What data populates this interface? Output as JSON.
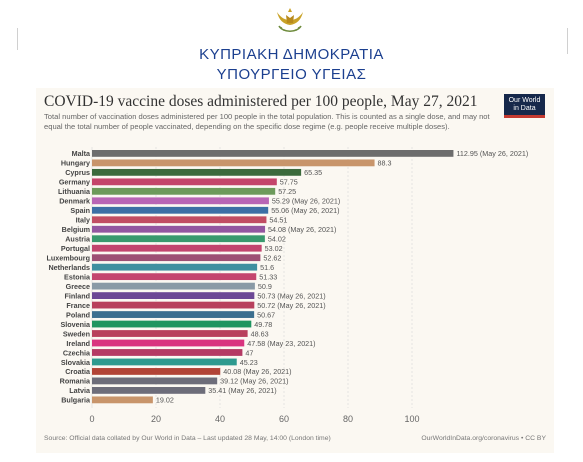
{
  "header": {
    "line1": "ΚΥΠΡΙΑΚΗ ΔΗΜΟΚΡΑΤΙΑ",
    "line2": "ΥΠΟΥΡΓΕΙΟ ΥΓΕΙΑΣ"
  },
  "logo": {
    "line1": "Our World",
    "line2": "in Data",
    "colors": {
      "bg": "#16284b",
      "accent": "#c43a31"
    }
  },
  "chart_data": {
    "type": "bar",
    "orientation": "horizontal",
    "title": "COVID-19 vaccine doses administered per 100 people, May 27, 2021",
    "subtitle": "Total number of vaccination doses administered per 100 people in the total population. This is counted as a single dose, and may not equal the total number of people vaccinated, depending on the specific dose regime (e.g. people receive multiple doses).",
    "xlim": [
      0,
      120
    ],
    "xticks": [
      0,
      20,
      40,
      60,
      80,
      100
    ],
    "grid": true,
    "categories": [
      "Malta",
      "Hungary",
      "Cyprus",
      "Germany",
      "Lithuania",
      "Denmark",
      "Spain",
      "Italy",
      "Belgium",
      "Austria",
      "Portugal",
      "Luxembourg",
      "Netherlands",
      "Estonia",
      "Greece",
      "Finland",
      "France",
      "Poland",
      "Slovenia",
      "Sweden",
      "Ireland",
      "Czechia",
      "Slovakia",
      "Croatia",
      "Romania",
      "Latvia",
      "Bulgaria"
    ],
    "values": [
      112.95,
      88.3,
      65.35,
      57.75,
      57.25,
      55.29,
      55.06,
      54.51,
      54.08,
      54.02,
      53.02,
      52.62,
      51.6,
      51.33,
      50.9,
      50.73,
      50.72,
      50.67,
      49.78,
      48.63,
      47.58,
      47,
      45.23,
      40.08,
      39.12,
      35.41,
      19.02
    ],
    "labels": [
      "112.95 (May 26, 2021)",
      "88.3",
      "65.35",
      "57.75",
      "57.25",
      "55.29 (May 26, 2021)",
      "55.06 (May 26, 2021)",
      "54.51",
      "54.08 (May 26, 2021)",
      "54.02",
      "53.02",
      "52.62",
      "51.6",
      "51.33",
      "50.9",
      "50.73 (May 26, 2021)",
      "50.72 (May 26, 2021)",
      "50.67",
      "49.78",
      "48.63",
      "47.58 (May 23, 2021)",
      "47",
      "45.23",
      "40.08 (May 26, 2021)",
      "39.12 (May 26, 2021)",
      "35.41 (May 26, 2021)",
      "19.02"
    ],
    "colors": [
      "#6d6d6d",
      "#c8956b",
      "#3b6a3c",
      "#c4456a",
      "#6d9a5b",
      "#b865b5",
      "#3c6fa5",
      "#c14d63",
      "#9356a0",
      "#39996d",
      "#c2456e",
      "#9d4f74",
      "#3f8fa0",
      "#c4456e",
      "#8a9aa6",
      "#6c4795",
      "#b8405c",
      "#3c6f8f",
      "#1f9560",
      "#b8405c",
      "#d9347f",
      "#b43a64",
      "#2e9a8f",
      "#b24437",
      "#6d6d7a",
      "#6d6d7a",
      "#c8956b"
    ]
  },
  "footer": {
    "source": "Source: Official data collated by Our World in Data – Last updated 28 May, 14:00 (London time)",
    "credit": "OurWorldInData.org/coronavirus • CC BY"
  }
}
